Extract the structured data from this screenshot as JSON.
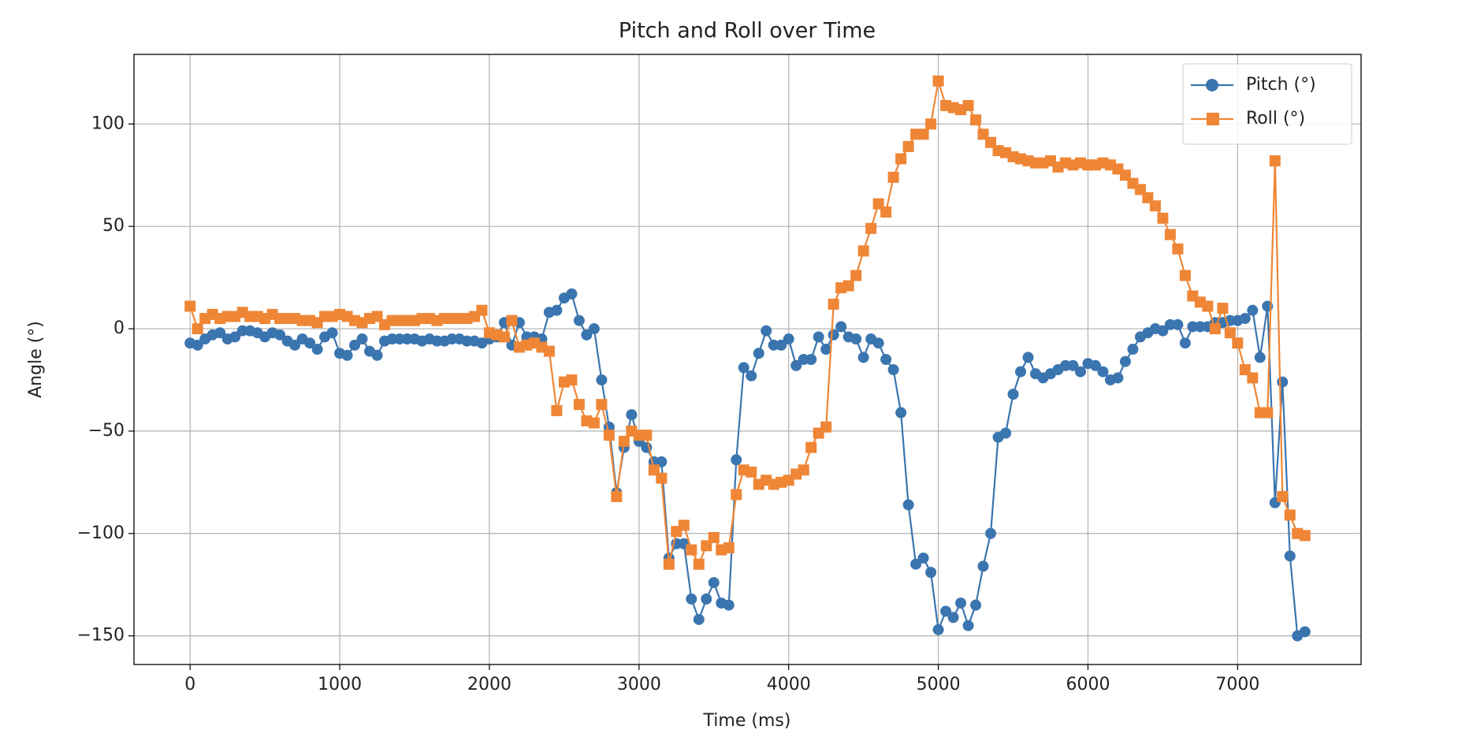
{
  "chart_data": {
    "type": "line",
    "title": "Pitch and Roll over Time",
    "xlabel": "Time (ms)",
    "ylabel": "Angle (°)",
    "x": [
      0,
      50,
      100,
      150,
      200,
      250,
      300,
      350,
      400,
      450,
      500,
      550,
      600,
      650,
      700,
      750,
      800,
      850,
      900,
      950,
      1000,
      1050,
      1100,
      1150,
      1200,
      1250,
      1300,
      1350,
      1400,
      1450,
      1500,
      1550,
      1600,
      1650,
      1700,
      1750,
      1800,
      1850,
      1900,
      1950,
      2000,
      2050,
      2100,
      2150,
      2200,
      2250,
      2300,
      2350,
      2400,
      2450,
      2500,
      2550,
      2600,
      2650,
      2700,
      2750,
      2800,
      2850,
      2900,
      2950,
      3000,
      3050,
      3100,
      3150,
      3200,
      3250,
      3300,
      3350,
      3400,
      3450,
      3500,
      3550,
      3600,
      3650,
      3700,
      3750,
      3800,
      3850,
      3900,
      3950,
      4000,
      4050,
      4100,
      4150,
      4200,
      4250,
      4300,
      4350,
      4400,
      4450,
      4500,
      4550,
      4600,
      4650,
      4700,
      4750,
      4800,
      4850,
      4900,
      4950,
      5000,
      5050,
      5100,
      5150,
      5200,
      5250,
      5300,
      5350,
      5400,
      5450,
      5500,
      5550,
      5600,
      5650,
      5700,
      5750,
      5800,
      5850,
      5900,
      5950,
      6000,
      6050,
      6100,
      6150,
      6200,
      6250,
      6300,
      6350,
      6400,
      6450,
      6500,
      6550,
      6600,
      6650,
      6700,
      6750,
      6800,
      6850,
      6900,
      6950,
      7000,
      7050,
      7100,
      7150,
      7200,
      7250,
      7300,
      7350,
      7400,
      7450
    ],
    "series": [
      {
        "name": "Pitch (°)",
        "color": "#3b75af",
        "marker": "circle",
        "values": [
          -7,
          -8,
          -5,
          -3,
          -2,
          -5,
          -4,
          -1,
          -1,
          -2,
          -4,
          -2,
          -3,
          -6,
          -8,
          -5,
          -7,
          -10,
          -4,
          -2,
          -12,
          -13,
          -8,
          -5,
          -11,
          -13,
          -6,
          -5,
          -5,
          -5,
          -5,
          -6,
          -5,
          -6,
          -6,
          -5,
          -5,
          -6,
          -6,
          -7,
          -5,
          -4,
          3,
          -8,
          3,
          -4,
          -4,
          -5,
          8,
          9,
          15,
          17,
          4,
          -3,
          0,
          -25,
          -48,
          -80,
          -58,
          -42,
          -55,
          -58,
          -65,
          -65,
          -112,
          -105,
          -105,
          -132,
          -142,
          -132,
          -124,
          -134,
          -135,
          -64,
          -19,
          -23,
          -12,
          -1,
          -8,
          -8,
          -5,
          -18,
          -15,
          -15,
          -4,
          -10,
          -3,
          1,
          -4,
          -5,
          -14,
          -5,
          -7,
          -15,
          -20,
          -41,
          -86,
          -115,
          -112,
          -119,
          -147,
          -138,
          -141,
          -134,
          -145,
          -135,
          -116,
          -100,
          -53,
          -51,
          -32,
          -21,
          -14,
          -22,
          -24,
          -22,
          -20,
          -18,
          -18,
          -21,
          -17,
          -18,
          -21,
          -25,
          -24,
          -16,
          -10,
          -4,
          -2,
          0,
          -1,
          2,
          2,
          -7,
          1,
          1,
          1,
          3,
          3,
          4,
          4,
          5,
          9,
          -14,
          11,
          -85,
          -26,
          -111,
          -150,
          -148
        ]
      },
      {
        "name": "Roll (°)",
        "color": "#ef8636",
        "marker": "square",
        "values": [
          11,
          0,
          5,
          7,
          5,
          6,
          6,
          8,
          6,
          6,
          5,
          7,
          5,
          5,
          5,
          4,
          4,
          3,
          6,
          6,
          7,
          6,
          4,
          3,
          5,
          6,
          2,
          4,
          4,
          4,
          4,
          5,
          5,
          4,
          5,
          5,
          5,
          5,
          6,
          9,
          -2,
          -3,
          -4,
          4,
          -9,
          -8,
          -7,
          -9,
          -11,
          -40,
          -26,
          -25,
          -37,
          -45,
          -46,
          -37,
          -52,
          -82,
          -55,
          -50,
          -52,
          -52,
          -69,
          -73,
          -115,
          -99,
          -96,
          -108,
          -115,
          -106,
          -102,
          -108,
          -107,
          -81,
          -69,
          -70,
          -76,
          -74,
          -76,
          -75,
          -74,
          -71,
          -69,
          -58,
          -51,
          -48,
          12,
          20,
          21,
          26,
          38,
          49,
          61,
          57,
          74,
          83,
          89,
          95,
          95,
          100,
          121,
          109,
          108,
          107,
          109,
          102,
          95,
          91,
          87,
          86,
          84,
          83,
          82,
          81,
          81,
          82,
          79,
          81,
          80,
          81,
          80,
          80,
          81,
          80,
          78,
          75,
          71,
          68,
          64,
          60,
          54,
          46,
          39,
          26,
          16,
          13,
          11,
          0,
          10,
          -2,
          -7,
          -20,
          -24,
          -41,
          -41,
          82,
          -82,
          -91,
          -100,
          -101
        ]
      }
    ],
    "xlim": [
      -375,
      7825
    ],
    "xticks": [
      0,
      1000,
      2000,
      3000,
      4000,
      5000,
      6000,
      7000
    ],
    "ylim": [
      -164,
      134
    ],
    "yticks": [
      {
        "value": -150,
        "label": "−150"
      },
      {
        "value": -100,
        "label": "−100"
      },
      {
        "value": -50,
        "label": "−50"
      },
      0,
      50,
      100
    ],
    "grid": true,
    "legend": "upper right"
  }
}
